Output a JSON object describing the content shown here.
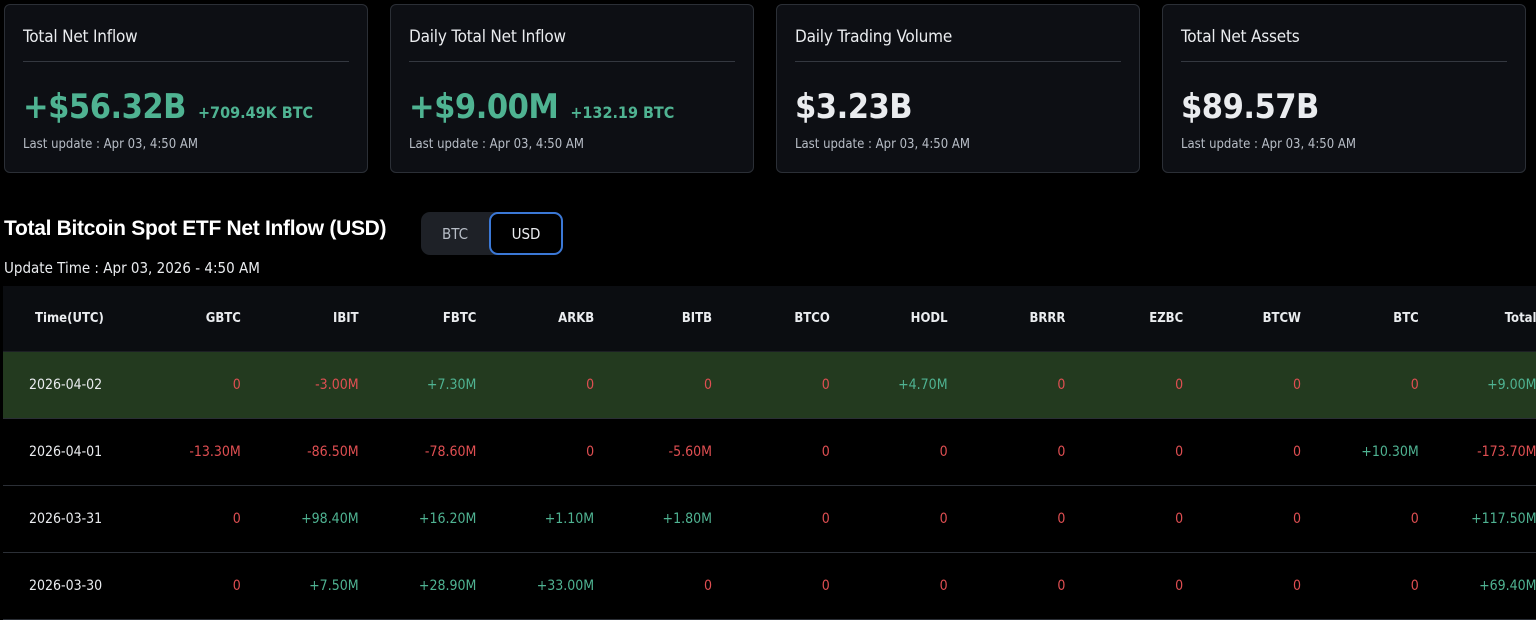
{
  "cards": [
    {
      "title": "Total Net Inflow",
      "value": "+$56.32B",
      "sub": "+709.49K BTC",
      "update": "Last update : Apr 03, 4:50 AM",
      "tone": "pos"
    },
    {
      "title": "Daily Total Net Inflow",
      "value": "+$9.00M",
      "sub": "+132.19 BTC",
      "update": "Last update : Apr 03, 4:50 AM",
      "tone": "pos"
    },
    {
      "title": "Daily Trading Volume",
      "value": "$3.23B",
      "sub": "",
      "update": "Last update : Apr 03, 4:50 AM",
      "tone": "neutral"
    },
    {
      "title": "Total Net Assets",
      "value": "$89.57B",
      "sub": "",
      "update": "Last update : Apr 03, 4:50 AM",
      "tone": "neutral"
    }
  ],
  "section": {
    "title": "Total Bitcoin Spot ETF Net Inflow (USD)",
    "update_time": "Update Time : Apr 03, 2026 - 4:50 AM",
    "toggle": {
      "options": [
        "BTC",
        "USD"
      ],
      "selected": "USD"
    }
  },
  "colors": {
    "positive": "#4fb392",
    "negative": "#e04f52",
    "highlight_row": "#233a1f",
    "toggle_active_border": "#3b78d6"
  },
  "table": {
    "headers": [
      "Time(UTC)",
      "GBTC",
      "IBIT",
      "FBTC",
      "ARKB",
      "BITB",
      "BTCO",
      "HODL",
      "BRRR",
      "EZBC",
      "BTCW",
      "BTC",
      "Total"
    ],
    "rows": [
      {
        "cells": [
          "2026-04-02",
          "0",
          "-3.00M",
          "+7.30M",
          "0",
          "0",
          "0",
          "+4.70M",
          "0",
          "0",
          "0",
          "0",
          "+9.00M"
        ],
        "highlight": true
      },
      {
        "cells": [
          "2026-04-01",
          "-13.30M",
          "-86.50M",
          "-78.60M",
          "0",
          "-5.60M",
          "0",
          "0",
          "0",
          "0",
          "0",
          "+10.30M",
          "-173.70M"
        ],
        "highlight": false
      },
      {
        "cells": [
          "2026-03-31",
          "0",
          "+98.40M",
          "+16.20M",
          "+1.10M",
          "+1.80M",
          "0",
          "0",
          "0",
          "0",
          "0",
          "0",
          "+117.50M"
        ],
        "highlight": false
      },
      {
        "cells": [
          "2026-03-30",
          "0",
          "+7.50M",
          "+28.90M",
          "+33.00M",
          "0",
          "0",
          "0",
          "0",
          "0",
          "0",
          "0",
          "+69.40M"
        ],
        "highlight": false
      }
    ]
  }
}
